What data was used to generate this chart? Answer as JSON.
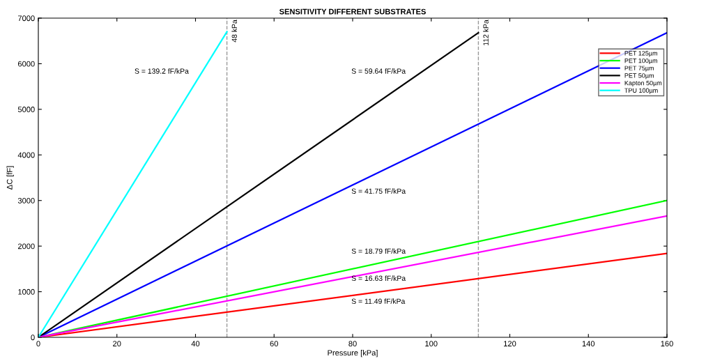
{
  "chart_data": {
    "type": "line",
    "title": "SENSITIVITY DIFFERENT SUBSTRATES",
    "xlabel": "Pressure [kPa]",
    "ylabel": "ΔC [fF]",
    "xlim": [
      0,
      160
    ],
    "ylim": [
      0,
      7000
    ],
    "xticks": [
      0,
      20,
      40,
      60,
      80,
      100,
      120,
      140,
      160
    ],
    "yticks": [
      0,
      1000,
      2000,
      3000,
      4000,
      5000,
      6000,
      7000
    ],
    "grid": false,
    "legend": "right",
    "marker": "none",
    "line_style": "solid",
    "series": [
      {
        "name": "PET 125µm",
        "color": "#ff0000",
        "x": [
          0,
          160
        ],
        "values": [
          0,
          1840
        ]
      },
      {
        "name": "PET 100µm",
        "color": "#00ff00",
        "x": [
          0,
          160
        ],
        "values": [
          0,
          3000
        ]
      },
      {
        "name": "PET 75µm",
        "color": "#0000ff",
        "x": [
          0,
          160
        ],
        "values": [
          0,
          6680
        ]
      },
      {
        "name": "PET 50µm",
        "color": "#000000",
        "x": [
          0,
          112
        ],
        "values": [
          0,
          6680
        ]
      },
      {
        "name": "Kapton 50µm",
        "color": "#ff00ff",
        "x": [
          0,
          160
        ],
        "values": [
          0,
          2660
        ]
      },
      {
        "name": "TPU 100µm",
        "color": "#00ffff",
        "x": [
          0,
          48
        ],
        "values": [
          0,
          6700
        ]
      }
    ],
    "ref_lines": [
      {
        "axis": "x",
        "value": 48,
        "label": "48 kPa",
        "color": "#999999",
        "line_style": "dashed"
      },
      {
        "axis": "x",
        "value": 112,
        "label": "112 kPa",
        "color": "#999999",
        "line_style": "dashed"
      }
    ],
    "annotations": [
      "S = 139.2 fF/kPa",
      "S = 59.64 fF/kPa",
      "S = 41.75 fF/kPa",
      "S = 18.79 fF/kPa",
      "S = 16.63 fF/kPa",
      "S = 11.49 fF/kPa"
    ]
  }
}
